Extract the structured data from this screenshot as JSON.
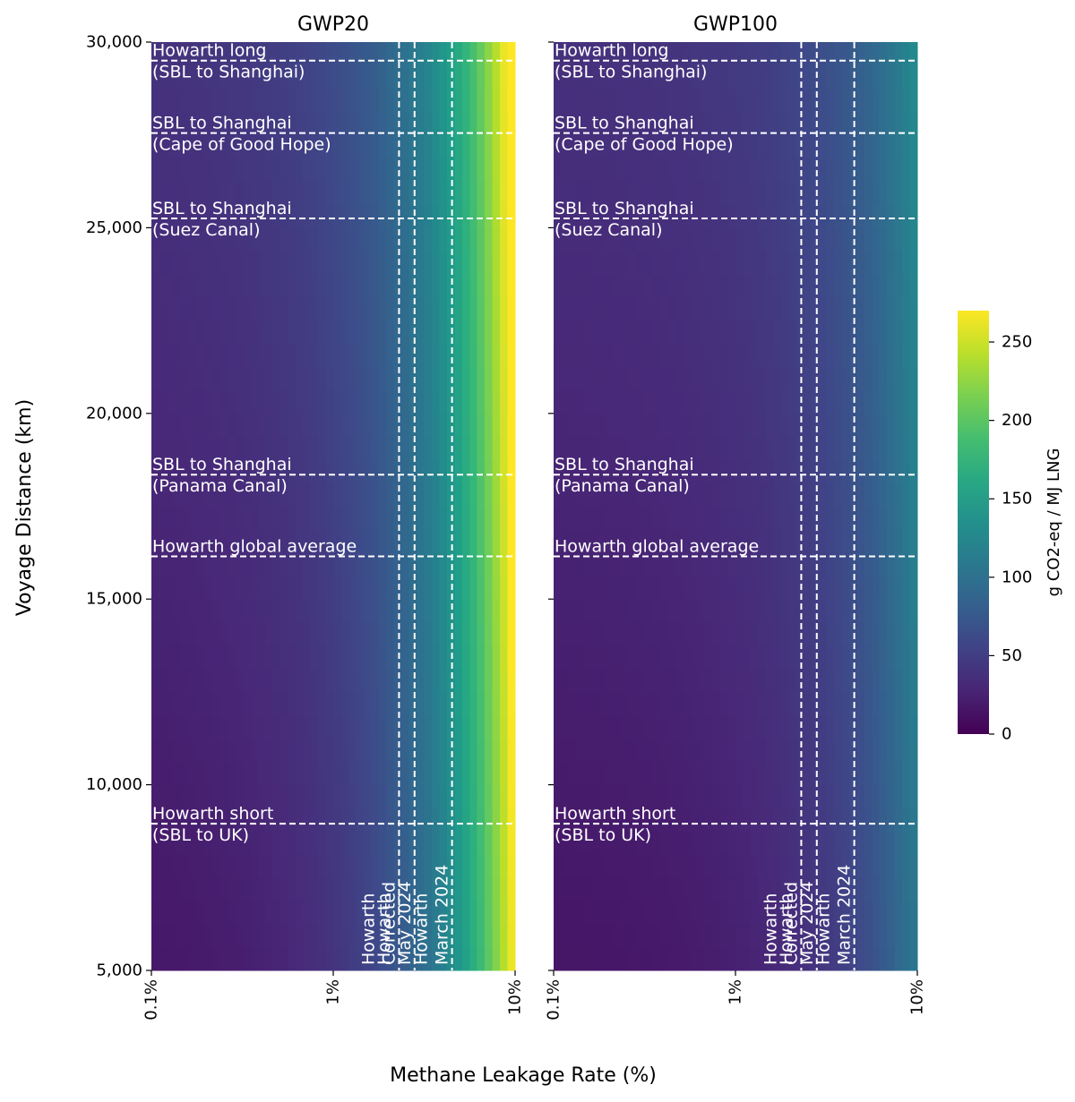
{
  "chart_data": {
    "type": "heatmap",
    "xlabel": "Methane Leakage Rate (%)",
    "ylabel": "Voyage Distance (km)",
    "x_scale": "log",
    "xlim": [
      0.1,
      10
    ],
    "ylim": [
      5000,
      30000
    ],
    "x_ticks": [
      {
        "value": 0.1,
        "label": "0.1%"
      },
      {
        "value": 1,
        "label": "1%"
      },
      {
        "value": 10,
        "label": "10%"
      }
    ],
    "y_ticks": [
      {
        "value": 5000,
        "label": "5,000"
      },
      {
        "value": 10000,
        "label": "10,000"
      },
      {
        "value": 15000,
        "label": "15,000"
      },
      {
        "value": 20000,
        "label": "20,000"
      },
      {
        "value": 25000,
        "label": "25,000"
      },
      {
        "value": 30000,
        "label": "30,000"
      }
    ],
    "colorbar": {
      "label": "g CO2-eq / MJ LNG",
      "colormap": "viridis",
      "range": [
        0,
        270
      ],
      "ticks": [
        {
          "value": 0,
          "label": "0"
        },
        {
          "value": 50,
          "label": "50"
        },
        {
          "value": 100,
          "label": "100"
        },
        {
          "value": 150,
          "label": "150"
        },
        {
          "value": 200,
          "label": "200"
        },
        {
          "value": 250,
          "label": "250"
        }
      ]
    },
    "horizontal_lines": [
      {
        "distance": 29500,
        "label_line1": "Howarth long",
        "label_line2": "(SBL to Shanghai)"
      },
      {
        "distance": 27550,
        "label_line1": "SBL to Shanghai",
        "label_line2": "(Cape of Good Hope)"
      },
      {
        "distance": 25250,
        "label_line1": "SBL to Shanghai",
        "label_line2": "(Suez Canal)"
      },
      {
        "distance": 18350,
        "label_line1": "SBL to Shanghai",
        "label_line2": "(Panama Canal)"
      },
      {
        "distance": 16150,
        "label_line1": "Howarth global average",
        "label_line2": ""
      },
      {
        "distance": 8950,
        "label_line1": "Howarth short",
        "label_line2": "(SBL to UK)"
      }
    ],
    "vertical_lines": [
      {
        "rate": 2.3,
        "label_line1": "Howarth",
        "label_line2": "Corrected"
      },
      {
        "rate": 2.8,
        "label_line1": "Howarth",
        "label_line2": "May 2024"
      },
      {
        "rate": 4.5,
        "label_line1": "Howarth",
        "label_line2": "March 2024"
      }
    ],
    "panels": [
      {
        "title": "GWP20",
        "emission_model": {
          "base": 10,
          "per_1000km": 0.9,
          "per_pct_leak": 26
        },
        "show_y_tick_labels": true
      },
      {
        "title": "GWP100",
        "emission_model": {
          "base": 10,
          "per_1000km": 0.9,
          "per_pct_leak": 9.5
        },
        "show_y_tick_labels": false
      }
    ]
  }
}
